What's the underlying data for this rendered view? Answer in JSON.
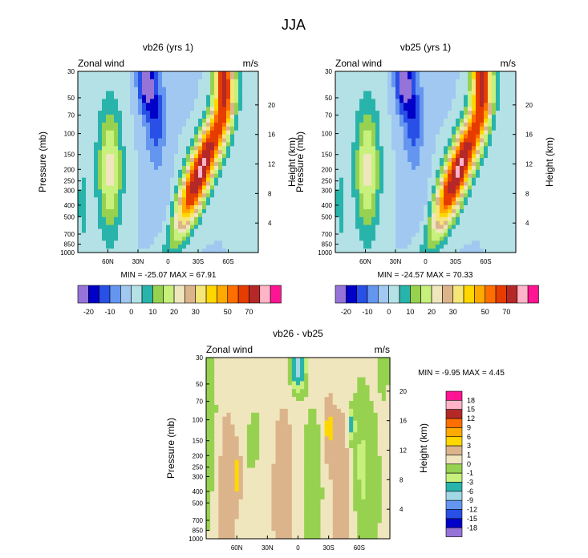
{
  "figure": {
    "title": "JJA"
  },
  "chart_data": [
    {
      "id": "vb26",
      "type": "heatmap",
      "title": "vb26 (yrs 1)",
      "left_label": "Zonal wind",
      "right_label": "m/s",
      "ylabel": "Pressure (mb)",
      "y2label": "Height (km)",
      "xticks": [
        "60N",
        "30N",
        "0",
        "30S",
        "60S"
      ],
      "xtick_lat": [
        60,
        30,
        0,
        -30,
        -60
      ],
      "xlim": [
        90,
        -90
      ],
      "pressure_ticks": [
        "30",
        "50",
        "70",
        "100",
        "150",
        "200",
        "250",
        "300",
        "400",
        "500",
        "700",
        "850",
        "1000"
      ],
      "height_ticks": [
        "20",
        "16",
        "12",
        "8",
        "4"
      ],
      "stats": "MIN = -25.07  MAX = 67.91",
      "levels": [
        "-20",
        "-10",
        "0",
        "10",
        "20",
        "30",
        "50",
        "70"
      ],
      "colors": [
        "#9673d8",
        "#0000c8",
        "#2850e6",
        "#6496f0",
        "#a0c8f0",
        "#b4e1e6",
        "#28b4aa",
        "#96d250",
        "#c8f07d",
        "#f0e6be",
        "#dcb48c",
        "#f5e678",
        "#ffd700",
        "#ffaa00",
        "#ff6e00",
        "#e63c00",
        "#b42828",
        "#ffb4c8",
        "#ff1493"
      ],
      "field": "model1"
    },
    {
      "id": "vb25",
      "type": "heatmap",
      "title": "vb25 (yrs 1)",
      "left_label": "Zonal wind",
      "right_label": "m/s",
      "ylabel": "Pressure (mb)",
      "y2label": "Height (km)",
      "xticks": [
        "60N",
        "30N",
        "0",
        "30S",
        "60S"
      ],
      "xtick_lat": [
        60,
        30,
        0,
        -30,
        -60
      ],
      "xlim": [
        90,
        -90
      ],
      "pressure_ticks": [
        "30",
        "50",
        "70",
        "100",
        "150",
        "200",
        "250",
        "300",
        "400",
        "500",
        "700",
        "850",
        "1000"
      ],
      "height_ticks": [
        "20",
        "16",
        "12",
        "8",
        "4"
      ],
      "stats": "MIN = -24.57  MAX =  70.33",
      "levels": [
        "-20",
        "-10",
        "0",
        "10",
        "20",
        "30",
        "50",
        "70"
      ],
      "colors": [
        "#9673d8",
        "#0000c8",
        "#2850e6",
        "#6496f0",
        "#a0c8f0",
        "#b4e1e6",
        "#28b4aa",
        "#96d250",
        "#c8f07d",
        "#f0e6be",
        "#dcb48c",
        "#f5e678",
        "#ffd700",
        "#ffaa00",
        "#ff6e00",
        "#e63c00",
        "#b42828",
        "#ffb4c8",
        "#ff1493"
      ],
      "field": "model2"
    },
    {
      "id": "diff",
      "type": "heatmap",
      "title": "vb26 - vb25",
      "left_label": "Zonal wind",
      "right_label": "m/s",
      "ylabel": "Pressure (mb)",
      "y2label": "Height (km)",
      "xticks": [
        "60N",
        "30N",
        "0",
        "30S",
        "60S"
      ],
      "xtick_lat": [
        60,
        30,
        0,
        -30,
        -60
      ],
      "xlim": [
        90,
        -90
      ],
      "pressure_ticks": [
        "30",
        "50",
        "70",
        "100",
        "150",
        "200",
        "250",
        "300",
        "400",
        "500",
        "700",
        "850",
        "1000"
      ],
      "height_ticks": [
        "20",
        "16",
        "12",
        "8",
        "4"
      ],
      "stats": "MIN =  -9.95  MAX =   4.45",
      "levels": [
        "18",
        "15",
        "12",
        "9",
        "6",
        "3",
        "1",
        "0",
        "-1",
        "-3",
        "-6",
        "-9",
        "-12",
        "-15",
        "-18"
      ],
      "colors": [
        "#ff1493",
        "#ffb4c8",
        "#b42828",
        "#ff6e00",
        "#ffaa00",
        "#ffd700",
        "#dcb48c",
        "#f0e6be",
        "#96d250",
        "#c8f07d",
        "#28b4aa",
        "#a0d8e6",
        "#6496f0",
        "#2850e6",
        "#0000c8",
        "#9673d8"
      ],
      "field": "difference"
    }
  ]
}
